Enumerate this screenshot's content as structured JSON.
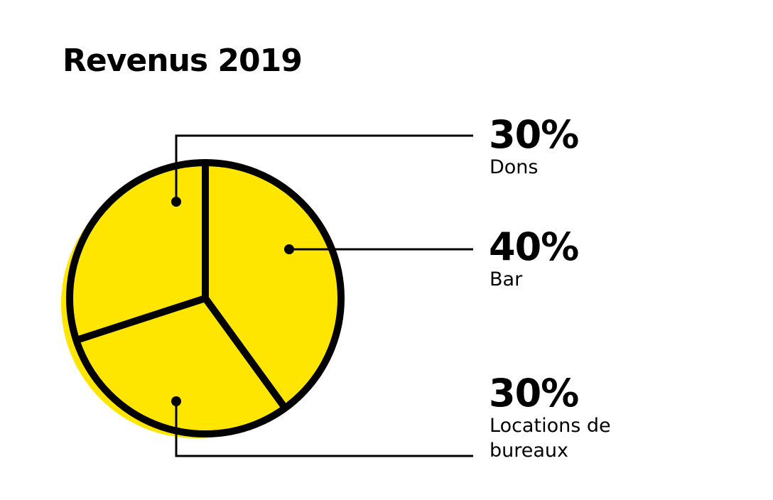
{
  "chart_data": {
    "type": "pie",
    "title": "Revenus 2019",
    "slices": [
      {
        "label_lines": [
          "Dons"
        ],
        "value": 30,
        "value_label": "30%"
      },
      {
        "label_lines": [
          "Bar"
        ],
        "value": 40,
        "value_label": "40%"
      },
      {
        "label_lines": [
          "Locations de",
          "bureaux"
        ],
        "value": 30,
        "value_label": "30%"
      }
    ],
    "colors": {
      "fill": "#FFE600",
      "outline": "#000000",
      "background": "#FFFFFF"
    }
  }
}
